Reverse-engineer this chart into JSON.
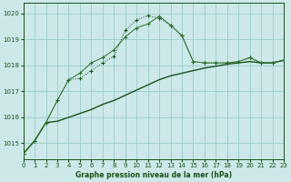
{
  "title": "Graphe pression niveau de la mer (hPa)",
  "bg_color": "#cce8e8",
  "grid_color": "#99cccc",
  "line_color_dark": "#1a5218",
  "line_color_med": "#2d6e2a",
  "x_ticks": [
    0,
    1,
    2,
    3,
    4,
    5,
    6,
    7,
    8,
    9,
    10,
    11,
    12,
    13,
    14,
    15,
    16,
    17,
    18,
    19,
    20,
    21,
    22,
    23
  ],
  "y_ticks": [
    1015,
    1016,
    1017,
    1018,
    1019,
    1020
  ],
  "xlim": [
    0,
    23
  ],
  "ylim": [
    1014.4,
    1020.4
  ],
  "dotted_x": [
    0,
    1,
    2,
    3,
    4,
    5,
    6,
    7,
    8,
    9,
    10,
    11,
    12,
    13,
    14,
    15,
    16,
    17,
    18,
    19,
    20,
    21,
    22,
    23
  ],
  "dotted_y": [
    1014.6,
    1015.1,
    1015.8,
    1016.65,
    1017.45,
    1017.5,
    1017.8,
    1018.1,
    1018.35,
    1019.35,
    1019.75,
    1019.92,
    1019.82,
    1019.55,
    1019.15,
    1018.15,
    1018.1,
    1018.1,
    1018.1,
    1018.15,
    1018.3,
    1018.1,
    1018.1,
    1018.2
  ],
  "solid_marker_x": [
    0,
    1,
    2,
    3,
    4,
    5,
    6,
    7,
    8,
    9,
    10,
    11,
    12,
    13,
    14,
    15,
    16,
    17,
    18,
    19,
    20,
    21,
    22,
    23
  ],
  "solid_marker_y": [
    1014.6,
    1015.1,
    1015.8,
    1016.65,
    1017.45,
    1017.7,
    1018.1,
    1018.3,
    1018.6,
    1019.1,
    1019.45,
    1019.6,
    1019.9,
    1019.55,
    1019.15,
    1018.15,
    1018.1,
    1018.1,
    1018.1,
    1018.15,
    1018.3,
    1018.1,
    1018.1,
    1018.2
  ],
  "smooth_x": [
    0,
    1,
    2,
    3,
    4,
    5,
    6,
    7,
    8,
    9,
    10,
    11,
    12,
    13,
    14,
    15,
    16,
    17,
    18,
    19,
    20,
    21,
    22,
    23
  ],
  "smooth_y": [
    1014.6,
    1015.1,
    1015.8,
    1015.85,
    1016.0,
    1016.15,
    1016.3,
    1016.5,
    1016.65,
    1016.85,
    1017.05,
    1017.25,
    1017.45,
    1017.6,
    1017.7,
    1017.8,
    1017.9,
    1017.97,
    1018.05,
    1018.1,
    1018.15,
    1018.1,
    1018.1,
    1018.2
  ]
}
